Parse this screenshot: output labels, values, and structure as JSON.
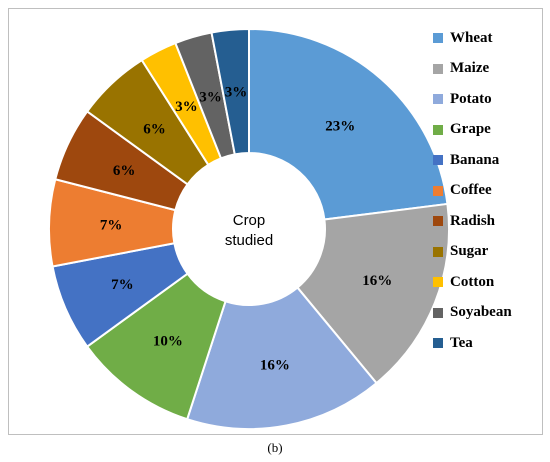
{
  "chart_data": {
    "type": "pie",
    "center_label": "Crop studied",
    "categories": [
      "Wheat",
      "Maize",
      "Potato",
      "Grape",
      "Banana",
      "Coffee",
      "Radish",
      "Sugar",
      "Cotton",
      "Soyabean",
      "Tea"
    ],
    "values": [
      23,
      16,
      16,
      10,
      7,
      7,
      6,
      6,
      3,
      3,
      3
    ],
    "data_labels": [
      "23%",
      "16%",
      "16%",
      "10%",
      "7%",
      "7%",
      "6%",
      "6%",
      "3%",
      "3%",
      "3%"
    ],
    "colors": [
      "#5b9bd5",
      "#a5a5a5",
      "#8faadc",
      "#70ad47",
      "#4472c4",
      "#ed7d31",
      "#9e480e",
      "#997300",
      "#ffc000",
      "#636363",
      "#255e91"
    ],
    "legend_position": "right"
  },
  "caption": "(b)"
}
